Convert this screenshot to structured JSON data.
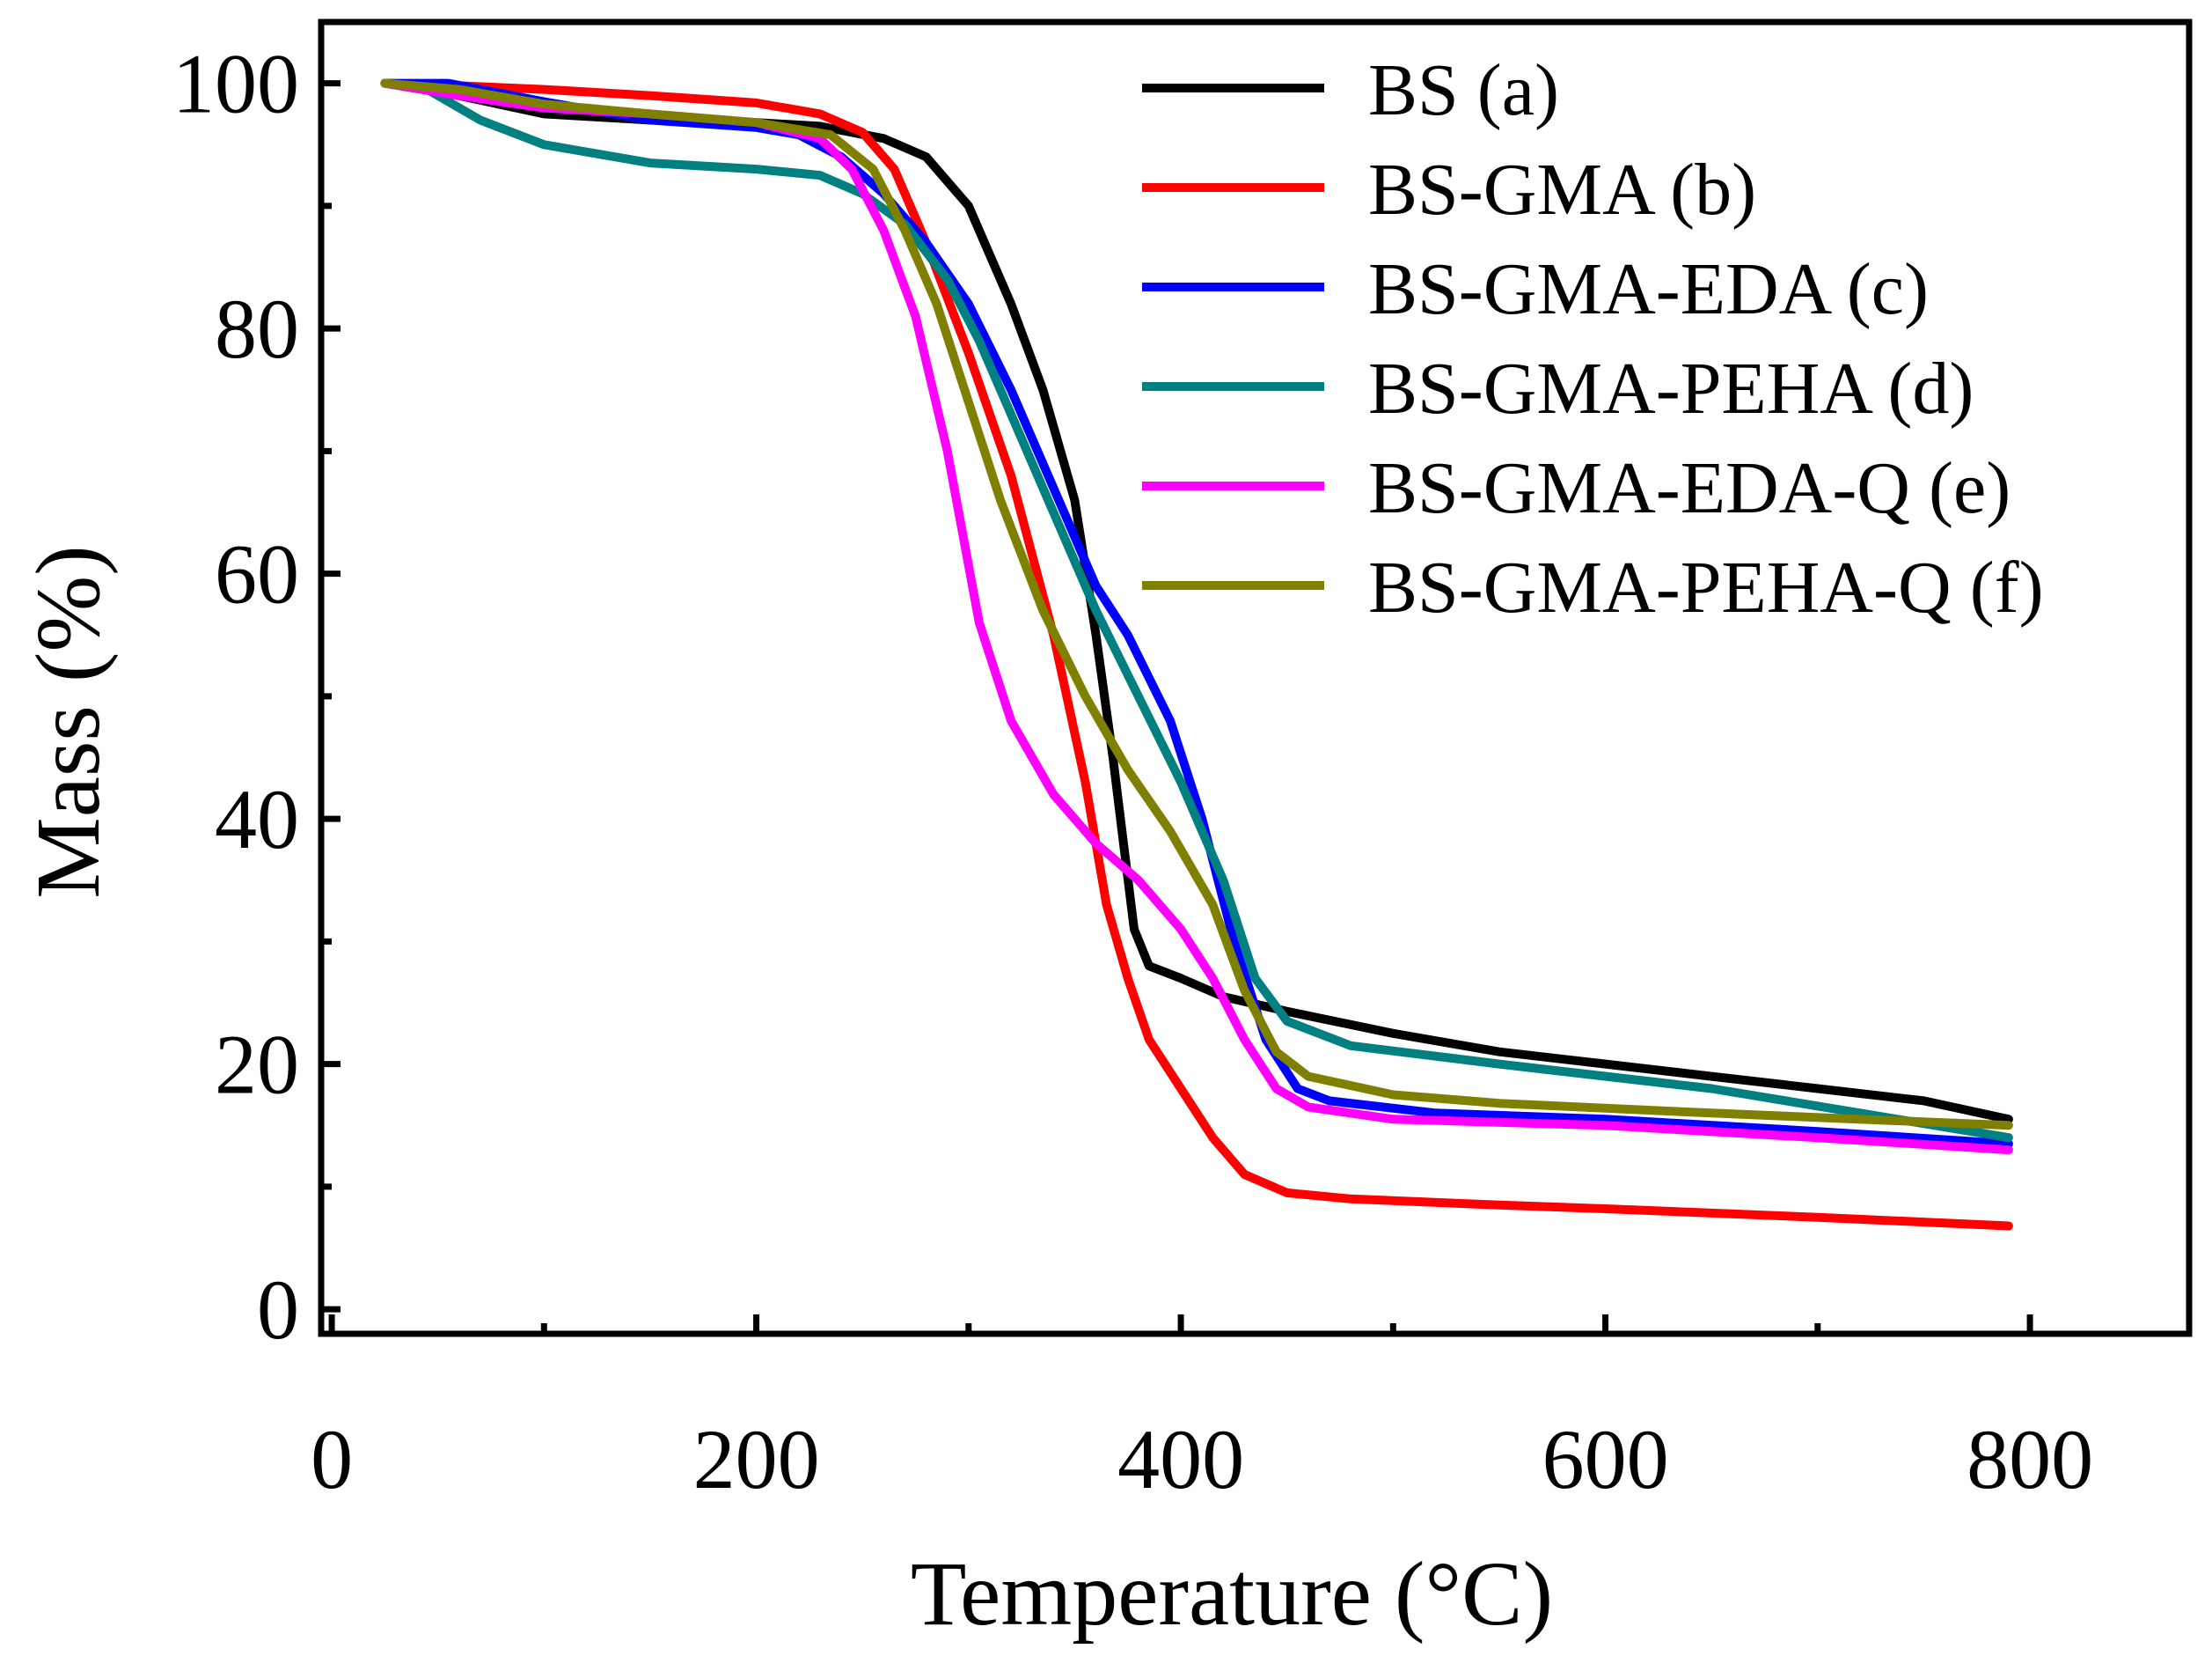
{
  "chart_data": {
    "type": "line",
    "title": "",
    "xlabel": "Temperature (°C)",
    "ylabel": "Mass (%)",
    "xlim": [
      -5,
      875
    ],
    "ylim": [
      -2,
      105
    ],
    "x_ticks": [
      0,
      200,
      400,
      600,
      800
    ],
    "y_ticks": [
      0,
      20,
      40,
      60,
      80,
      100
    ],
    "grid": false,
    "legend_position": "top-right",
    "series": [
      {
        "name": "BS (a)",
        "color": "#000000",
        "points": [
          [
            25,
            100
          ],
          [
            60,
            99
          ],
          [
            100,
            97.5
          ],
          [
            150,
            97
          ],
          [
            200,
            96.8
          ],
          [
            230,
            96.5
          ],
          [
            260,
            95.5
          ],
          [
            280,
            94
          ],
          [
            300,
            90
          ],
          [
            320,
            82
          ],
          [
            335,
            75
          ],
          [
            350,
            66
          ],
          [
            360,
            55
          ],
          [
            368,
            45
          ],
          [
            373,
            38
          ],
          [
            378,
            31
          ],
          [
            385,
            28
          ],
          [
            400,
            27
          ],
          [
            420,
            25.5
          ],
          [
            450,
            24.3
          ],
          [
            500,
            22.5
          ],
          [
            550,
            21
          ],
          [
            600,
            20
          ],
          [
            650,
            19
          ],
          [
            700,
            18
          ],
          [
            750,
            17
          ],
          [
            790,
            15.5
          ]
        ]
      },
      {
        "name": "BS-GMA (b)",
        "color": "#ff0000",
        "points": [
          [
            25,
            100
          ],
          [
            60,
            99.8
          ],
          [
            100,
            99.5
          ],
          [
            150,
            99
          ],
          [
            200,
            98.4
          ],
          [
            230,
            97.5
          ],
          [
            250,
            96
          ],
          [
            265,
            93
          ],
          [
            280,
            87
          ],
          [
            300,
            78
          ],
          [
            320,
            68
          ],
          [
            340,
            55
          ],
          [
            355,
            43
          ],
          [
            365,
            33
          ],
          [
            375,
            27
          ],
          [
            385,
            22
          ],
          [
            400,
            18
          ],
          [
            415,
            14
          ],
          [
            430,
            11
          ],
          [
            450,
            9.5
          ],
          [
            480,
            9
          ],
          [
            550,
            8.5
          ],
          [
            600,
            8.2
          ],
          [
            700,
            7.5
          ],
          [
            790,
            6.8
          ]
        ]
      },
      {
        "name": "BS-GMA-EDA (c)",
        "color": "#0000ff",
        "points": [
          [
            25,
            100
          ],
          [
            55,
            100
          ],
          [
            100,
            98.5
          ],
          [
            150,
            97
          ],
          [
            200,
            96.4
          ],
          [
            220,
            95.8
          ],
          [
            240,
            94
          ],
          [
            260,
            91
          ],
          [
            280,
            87
          ],
          [
            300,
            82
          ],
          [
            320,
            75
          ],
          [
            340,
            67
          ],
          [
            360,
            59
          ],
          [
            375,
            55
          ],
          [
            395,
            48
          ],
          [
            410,
            40
          ],
          [
            425,
            30
          ],
          [
            440,
            22
          ],
          [
            455,
            18
          ],
          [
            470,
            17
          ],
          [
            520,
            16
          ],
          [
            600,
            15.5
          ],
          [
            700,
            14.5
          ],
          [
            790,
            13.5
          ]
        ]
      },
      {
        "name": "BS-GMA-PEHA (d)",
        "color": "#008080",
        "points": [
          [
            25,
            100
          ],
          [
            45,
            99.5
          ],
          [
            70,
            97
          ],
          [
            100,
            95
          ],
          [
            150,
            93.5
          ],
          [
            200,
            93
          ],
          [
            230,
            92.5
          ],
          [
            250,
            91
          ],
          [
            270,
            88.5
          ],
          [
            290,
            84
          ],
          [
            305,
            79
          ],
          [
            320,
            73
          ],
          [
            340,
            65
          ],
          [
            360,
            57
          ],
          [
            380,
            50
          ],
          [
            400,
            43
          ],
          [
            420,
            35
          ],
          [
            435,
            27
          ],
          [
            450,
            23.5
          ],
          [
            480,
            21.5
          ],
          [
            550,
            20
          ],
          [
            650,
            18
          ],
          [
            720,
            16
          ],
          [
            790,
            14
          ]
        ]
      },
      {
        "name": "BS-GMA-EDA-Q (e)",
        "color": "#ff00ff",
        "points": [
          [
            25,
            100
          ],
          [
            60,
            99
          ],
          [
            100,
            98
          ],
          [
            150,
            97.5
          ],
          [
            200,
            96.8
          ],
          [
            230,
            95.5
          ],
          [
            245,
            93
          ],
          [
            260,
            88
          ],
          [
            275,
            81
          ],
          [
            290,
            70
          ],
          [
            305,
            56
          ],
          [
            320,
            48
          ],
          [
            340,
            42
          ],
          [
            360,
            38
          ],
          [
            380,
            35
          ],
          [
            400,
            31
          ],
          [
            415,
            27
          ],
          [
            430,
            22
          ],
          [
            445,
            18
          ],
          [
            460,
            16.5
          ],
          [
            500,
            15.5
          ],
          [
            600,
            15
          ],
          [
            700,
            14
          ],
          [
            790,
            13
          ]
        ]
      },
      {
        "name": "BS-GMA-PEHA-Q (f)",
        "color": "#808000",
        "points": [
          [
            25,
            100
          ],
          [
            60,
            99.5
          ],
          [
            100,
            98.3
          ],
          [
            150,
            97.5
          ],
          [
            200,
            96.8
          ],
          [
            235,
            95.8
          ],
          [
            255,
            93
          ],
          [
            270,
            88
          ],
          [
            285,
            82
          ],
          [
            300,
            74
          ],
          [
            315,
            66
          ],
          [
            335,
            57
          ],
          [
            355,
            50
          ],
          [
            375,
            44
          ],
          [
            395,
            39
          ],
          [
            415,
            33
          ],
          [
            430,
            26
          ],
          [
            445,
            21
          ],
          [
            460,
            19
          ],
          [
            500,
            17.5
          ],
          [
            550,
            16.8
          ],
          [
            650,
            16
          ],
          [
            790,
            15
          ]
        ]
      }
    ]
  }
}
